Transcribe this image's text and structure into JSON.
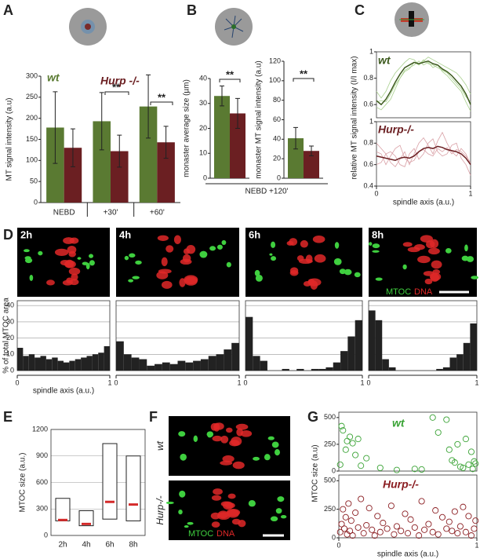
{
  "panel_labels": [
    "A",
    "B",
    "C",
    "D",
    "E",
    "F",
    "G"
  ],
  "legend_d": {
    "mtoc": "MTOC",
    "dna": "DNA"
  },
  "panel_f": {
    "wt": "wt",
    "hurp": "Hurp-/-",
    "mtoc": "MTOC",
    "dna": "DNA"
  },
  "chart_data": [
    {
      "type": "bar",
      "ylabel": "MT signal intensity (a.u)",
      "categories": [
        "NEBD",
        "+30'",
        "+60'"
      ],
      "series": [
        {
          "name": "wt",
          "color": "#5a7a32",
          "values": [
            178,
            193,
            228
          ],
          "errors": [
            85,
            68,
            75
          ]
        },
        {
          "name": "Hurp -/-",
          "color": "#6b1f22",
          "values": [
            130,
            122,
            143
          ],
          "errors": [
            45,
            38,
            38
          ]
        }
      ],
      "ylim": [
        0,
        300
      ],
      "yticks": [
        0,
        50,
        100,
        150,
        200,
        250,
        300
      ],
      "annotations": [
        "**",
        "**"
      ]
    },
    {
      "type": "bar",
      "ylabel": "monaster average size (µm)",
      "xlabel": "NEBD +120'",
      "values": [
        33,
        26
      ],
      "errors": [
        4,
        6
      ],
      "colors": [
        "#5a7a32",
        "#6b1f22"
      ],
      "ylim": [
        0,
        40
      ],
      "yticks": [
        0,
        10,
        20,
        30,
        40
      ],
      "annotations": [
        "**"
      ]
    },
    {
      "type": "bar",
      "ylabel": "monaster MT signal intensity (a.u)",
      "values": [
        41,
        28
      ],
      "errors": [
        11,
        5
      ],
      "colors": [
        "#5a7a32",
        "#6b1f22"
      ],
      "ylim": [
        0,
        120
      ],
      "yticks": [
        0,
        20,
        40,
        60,
        80,
        100,
        120
      ],
      "annotations": [
        "**"
      ]
    },
    {
      "type": "line",
      "label": "wt",
      "ylabel": "relative MT signal intensity (I/I max)",
      "x": [
        0,
        0.05,
        0.1,
        0.15,
        0.2,
        0.25,
        0.3,
        0.35,
        0.4,
        0.45,
        0.5,
        0.55,
        0.6,
        0.65,
        0.7,
        0.75,
        0.8,
        0.85,
        0.9,
        0.95,
        1
      ],
      "series": [
        {
          "color": "#a9d08e",
          "width": 0.8,
          "values": [
            0.7,
            0.65,
            0.7,
            0.78,
            0.84,
            0.88,
            0.92,
            0.95,
            0.94,
            0.9,
            0.93,
            0.96,
            0.94,
            0.92,
            0.9,
            0.88,
            0.86,
            0.84,
            0.8,
            0.75,
            0.68
          ]
        },
        {
          "color": "#a9d08e",
          "width": 0.8,
          "values": [
            0.58,
            0.56,
            0.6,
            0.64,
            0.72,
            0.8,
            0.86,
            0.88,
            0.9,
            0.93,
            0.9,
            0.92,
            0.88,
            0.9,
            0.85,
            0.82,
            0.78,
            0.74,
            0.7,
            0.62,
            0.55
          ]
        },
        {
          "color": "#a9d08e",
          "width": 0.8,
          "values": [
            0.62,
            0.63,
            0.62,
            0.68,
            0.75,
            0.8,
            0.85,
            0.87,
            0.92,
            0.9,
            0.94,
            0.91,
            0.9,
            0.88,
            0.86,
            0.84,
            0.8,
            0.76,
            0.72,
            0.66,
            0.62
          ]
        },
        {
          "color": "#3d5a1e",
          "width": 1.5,
          "values": [
            0.63,
            0.6,
            0.64,
            0.7,
            0.77,
            0.83,
            0.88,
            0.9,
            0.92,
            0.91,
            0.92,
            0.93,
            0.91,
            0.9,
            0.87,
            0.85,
            0.82,
            0.78,
            0.74,
            0.68,
            0.6
          ]
        }
      ],
      "xlim": [
        0,
        1
      ],
      "ylim": [
        0.5,
        1
      ],
      "yticks": [
        0.6,
        0.8,
        1
      ]
    },
    {
      "type": "line",
      "label": "Hurp-/-",
      "xlabel": "spindle axis (a.u.)",
      "x": [
        0,
        0.05,
        0.1,
        0.15,
        0.2,
        0.25,
        0.3,
        0.35,
        0.4,
        0.45,
        0.5,
        0.55,
        0.6,
        0.65,
        0.7,
        0.75,
        0.8,
        0.85,
        0.9,
        0.95,
        1
      ],
      "series": [
        {
          "color": "#d9a0a6",
          "width": 0.8,
          "values": [
            0.8,
            0.75,
            0.7,
            0.62,
            0.58,
            0.65,
            0.72,
            0.6,
            0.7,
            0.8,
            0.85,
            0.78,
            0.7,
            0.82,
            0.9,
            0.8,
            0.72,
            0.68,
            0.75,
            0.7,
            0.6
          ]
        },
        {
          "color": "#d9a0a6",
          "width": 0.8,
          "values": [
            0.6,
            0.62,
            0.7,
            0.72,
            0.68,
            0.6,
            0.58,
            0.7,
            0.75,
            0.65,
            0.7,
            0.8,
            0.84,
            0.72,
            0.68,
            0.7,
            0.78,
            0.8,
            0.66,
            0.6,
            0.5
          ]
        },
        {
          "color": "#d9a0a6",
          "width": 0.8,
          "values": [
            0.72,
            0.7,
            0.6,
            0.68,
            0.75,
            0.78,
            0.66,
            0.62,
            0.64,
            0.72,
            0.74,
            0.7,
            0.68,
            0.75,
            0.72,
            0.76,
            0.7,
            0.74,
            0.72,
            0.68,
            0.62
          ]
        },
        {
          "color": "#6b1f22",
          "width": 1.5,
          "values": [
            0.68,
            0.67,
            0.66,
            0.65,
            0.64,
            0.66,
            0.67,
            0.66,
            0.68,
            0.72,
            0.75,
            0.76,
            0.75,
            0.77,
            0.76,
            0.74,
            0.73,
            0.72,
            0.7,
            0.66,
            0.6
          ]
        }
      ],
      "xlim": [
        0,
        1
      ],
      "ylim": [
        0.4,
        1
      ],
      "yticks": [
        0.4,
        0.6,
        0.8,
        1
      ],
      "xticks": [
        0,
        1
      ]
    },
    {
      "type": "histogram",
      "label": "2h",
      "ylabel": "% of total MTOC area",
      "xlabel": "spindle axis (a.u.)",
      "color": "#222",
      "bins": [
        0,
        0.0625,
        0.125,
        0.1875,
        0.25,
        0.3125,
        0.375,
        0.4375,
        0.5,
        0.5625,
        0.625,
        0.6875,
        0.75,
        0.8125,
        0.875,
        0.9375,
        1
      ],
      "values": [
        14,
        9,
        10,
        8,
        9,
        7,
        8,
        6,
        5,
        6,
        7,
        8,
        9,
        10,
        11,
        15
      ],
      "xlim": [
        0,
        1
      ],
      "ylim": [
        0,
        43
      ],
      "yticks": [
        0,
        10,
        20,
        30,
        40
      ],
      "xticks": [
        0,
        1
      ],
      "grid": true,
      "tick_labels": true
    },
    {
      "type": "histogram",
      "label": "4h",
      "color": "#222",
      "bins": [
        0,
        0.0625,
        0.125,
        0.1875,
        0.25,
        0.3125,
        0.375,
        0.4375,
        0.5,
        0.5625,
        0.625,
        0.6875,
        0.75,
        0.8125,
        0.875,
        0.9375,
        1
      ],
      "values": [
        18,
        10,
        8,
        7,
        3,
        4,
        5,
        4,
        6,
        5,
        6,
        7,
        9,
        10,
        13,
        17
      ],
      "xlim": [
        0,
        1
      ],
      "ylim": [
        0,
        43
      ],
      "yticks": [
        0,
        10,
        20,
        30,
        40
      ],
      "xticks": [
        0,
        1
      ],
      "grid": true,
      "tick_labels": false
    },
    {
      "type": "histogram",
      "label": "6h",
      "color": "#222",
      "bins": [
        0,
        0.0625,
        0.125,
        0.1875,
        0.25,
        0.3125,
        0.375,
        0.4375,
        0.5,
        0.5625,
        0.625,
        0.6875,
        0.75,
        0.8125,
        0.875,
        0.9375,
        1
      ],
      "values": [
        33,
        9,
        6,
        0,
        0,
        1,
        0,
        1,
        0,
        1,
        1,
        2,
        5,
        12,
        21,
        31
      ],
      "xlim": [
        0,
        1
      ],
      "ylim": [
        0,
        43
      ],
      "yticks": [
        0,
        10,
        20,
        30,
        40
      ],
      "xticks": [
        0,
        1
      ],
      "grid": true,
      "tick_labels": false
    },
    {
      "type": "histogram",
      "label": "8h",
      "color": "#222",
      "bins": [
        0,
        0.0625,
        0.125,
        0.1875,
        0.25,
        0.3125,
        0.375,
        0.4375,
        0.5,
        0.5625,
        0.625,
        0.6875,
        0.75,
        0.8125,
        0.875,
        0.9375,
        1
      ],
      "values": [
        37,
        31,
        7,
        2,
        0,
        0,
        0,
        0,
        0,
        0,
        1,
        2,
        8,
        10,
        17,
        29
      ],
      "xlim": [
        0,
        1
      ],
      "ylim": [
        0,
        43
      ],
      "yticks": [
        0,
        10,
        20,
        30,
        40
      ],
      "xticks": [
        0,
        1
      ],
      "grid": true,
      "tick_labels": false
    },
    {
      "type": "range",
      "ylabel": "MTOC size (a.u.)",
      "categories": [
        "2h",
        "4h",
        "6h",
        "8h"
      ],
      "low": [
        165,
        110,
        185,
        165
      ],
      "high": [
        420,
        280,
        1040,
        900
      ],
      "values": [
        175,
        130,
        380,
        350
      ],
      "color": "#d42a2a",
      "ylim": [
        0,
        1200
      ],
      "yticks": [
        0,
        300,
        600,
        900,
        1200
      ],
      "grid": true
    },
    {
      "type": "scatter",
      "label": "wt",
      "ylabel": "MTOC size (a.u)",
      "color": "#3aa335",
      "x": [
        0.01,
        0.02,
        0.03,
        0.05,
        0.06,
        0.08,
        0.1,
        0.12,
        0.14,
        0.16,
        0.2,
        0.3,
        0.42,
        0.55,
        0.6,
        0.68,
        0.72,
        0.78,
        0.8,
        0.82,
        0.84,
        0.86,
        0.88,
        0.9,
        0.92,
        0.94,
        0.96,
        0.98,
        0.99,
        0.97
      ],
      "values": [
        60,
        420,
        380,
        200,
        280,
        320,
        260,
        150,
        300,
        50,
        120,
        30,
        10,
        20,
        15,
        500,
        360,
        480,
        200,
        100,
        80,
        250,
        40,
        30,
        300,
        60,
        180,
        90,
        70,
        20
      ],
      "xlim": [
        0,
        1
      ],
      "ylim": [
        0,
        550
      ],
      "yticks": [
        0,
        250,
        500
      ]
    },
    {
      "type": "scatter",
      "label": "Hurp-/-",
      "xlabel": "spindle axis (a.u.)",
      "color": "#8b1e22",
      "x": [
        0.01,
        0.02,
        0.03,
        0.04,
        0.05,
        0.06,
        0.07,
        0.08,
        0.09,
        0.1,
        0.12,
        0.14,
        0.16,
        0.18,
        0.2,
        0.22,
        0.24,
        0.26,
        0.28,
        0.3,
        0.32,
        0.35,
        0.38,
        0.4,
        0.42,
        0.45,
        0.48,
        0.5,
        0.52,
        0.55,
        0.58,
        0.6,
        0.62,
        0.65,
        0.68,
        0.7,
        0.72,
        0.75,
        0.78,
        0.8,
        0.82,
        0.84,
        0.86,
        0.88,
        0.9,
        0.92,
        0.94,
        0.96,
        0.98,
        0.99
      ],
      "values": [
        50,
        120,
        250,
        80,
        180,
        30,
        300,
        60,
        150,
        20,
        220,
        90,
        340,
        40,
        110,
        260,
        70,
        20,
        190,
        50,
        130,
        80,
        280,
        30,
        100,
        60,
        210,
        40,
        160,
        90,
        20,
        320,
        70,
        120,
        50,
        240,
        30,
        180,
        80,
        140,
        60,
        230,
        40,
        100,
        270,
        50,
        190,
        20,
        80,
        150
      ],
      "xlim": [
        0,
        1
      ],
      "ylim": [
        0,
        550
      ],
      "yticks": [
        0,
        250,
        500
      ],
      "xticks": [
        0,
        1
      ]
    }
  ]
}
